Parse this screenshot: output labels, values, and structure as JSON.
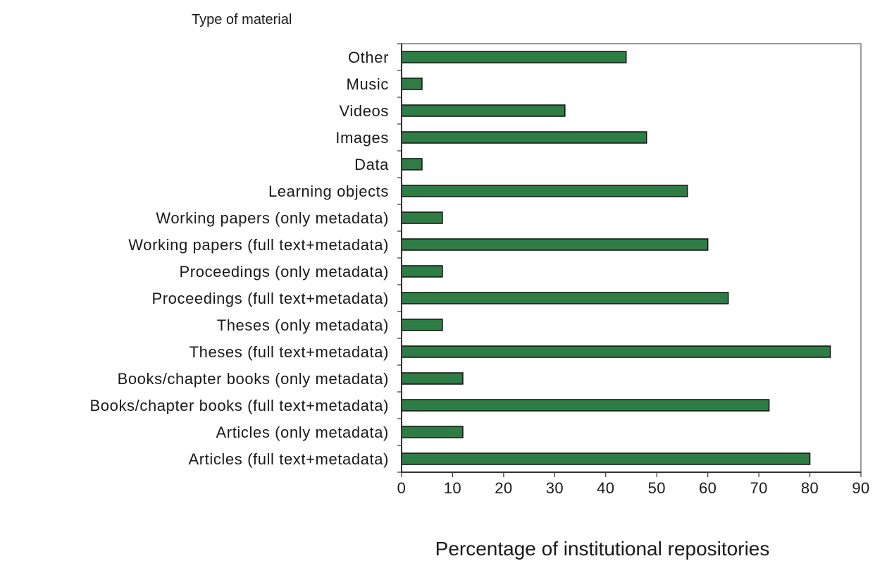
{
  "chart_data": {
    "type": "bar",
    "orientation": "horizontal",
    "ylabel": "Type of material",
    "xlabel": "Percentage of institutional repositories",
    "xlim": [
      0,
      90
    ],
    "xticks": [
      "0",
      "10",
      "20",
      "30",
      "40",
      "50",
      "60",
      "70",
      "80",
      "90"
    ],
    "grid": false,
    "legend": "none",
    "bar_color": "#2e7d45",
    "categories": [
      "Other",
      "Music",
      "Videos",
      "Images",
      "Data",
      "Learning objects",
      "Working papers (only metadata)",
      "Working papers (full text+metadata)",
      "Proceedings (only metadata)",
      "Proceedings (full text+metadata)",
      "Theses (only metadata)",
      "Theses (full text+metadata)",
      "Books/chapter books  (only metadata)",
      "Books/chapter books (full text+metadata)",
      "Articles (only metadata)",
      "Articles (full text+metadata)"
    ],
    "values": [
      44,
      4,
      32,
      48,
      4,
      56,
      8,
      60,
      8,
      64,
      8,
      84,
      12,
      72,
      12,
      80
    ]
  }
}
